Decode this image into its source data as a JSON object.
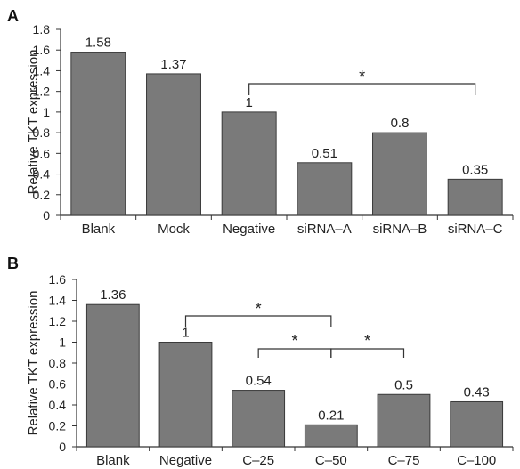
{
  "chart_data": [
    {
      "type": "bar",
      "panel_label": "A",
      "ylabel": "Relative TKT expression",
      "xlabel": "",
      "ylim": [
        0,
        1.8
      ],
      "yticks": [
        "0",
        "0.2",
        "0.4",
        "0.6",
        "0.8",
        "1",
        "1.2",
        "1.4",
        "1.6",
        "1.8"
      ],
      "categories": [
        "Blank",
        "Mock",
        "Negative",
        "siRNA–A",
        "siRNA–B",
        "siRNA–C"
      ],
      "values": [
        1.58,
        1.37,
        1,
        0.51,
        0.8,
        0.35
      ],
      "value_labels": [
        "1.58",
        "1.37",
        "1",
        "0.51",
        "0.8",
        "0.35"
      ],
      "bar_color": "#7a7a7a",
      "grid": false,
      "significance": [
        {
          "from": "Negative",
          "to": "siRNA–C",
          "label": "*"
        }
      ]
    },
    {
      "type": "bar",
      "panel_label": "B",
      "ylabel": "Relative TKT expression",
      "xlabel": "",
      "ylim": [
        0,
        1.6
      ],
      "yticks": [
        "0",
        "0.2",
        "0.4",
        "0.6",
        "0.8",
        "1",
        "1.2",
        "1.4",
        "1.6"
      ],
      "categories": [
        "Blank",
        "Negative",
        "C–25",
        "C–50",
        "C–75",
        "C–100"
      ],
      "values": [
        1.36,
        1,
        0.54,
        0.21,
        0.5,
        0.43
      ],
      "value_labels": [
        "1.36",
        "1",
        "0.54",
        "0.21",
        "0.5",
        "0.43"
      ],
      "bar_color": "#7a7a7a",
      "grid": false,
      "significance": [
        {
          "from": "Negative",
          "to": "C–50",
          "label": "*"
        },
        {
          "from": "C–25",
          "to": "C–50",
          "label": "*"
        },
        {
          "from": "C–50",
          "to": "C–75",
          "label": "*"
        }
      ]
    }
  ]
}
